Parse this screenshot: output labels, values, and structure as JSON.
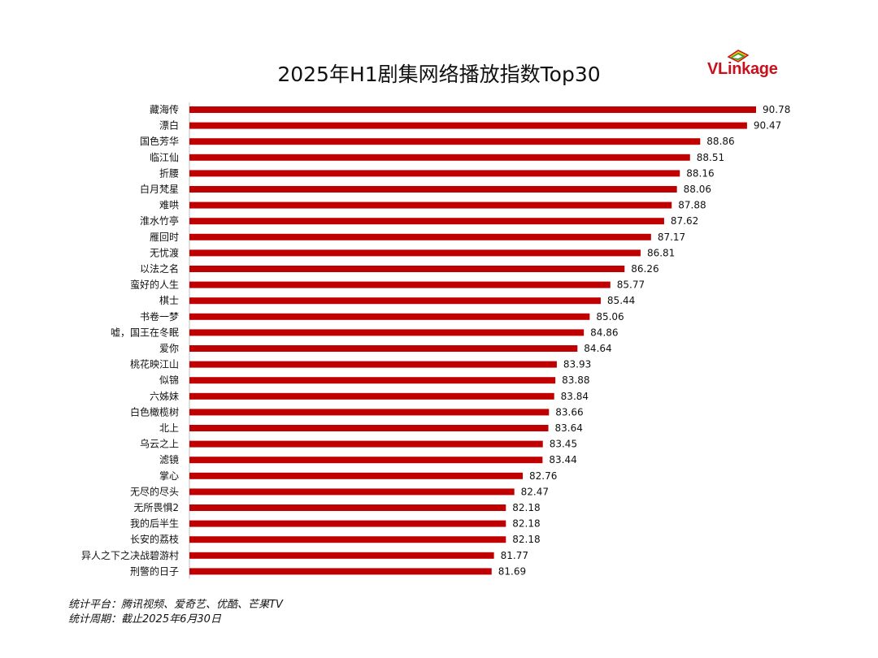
{
  "header": {
    "title": "2025年H1剧集网络播放指数Top30"
  },
  "logo": {
    "text_v": "VL",
    "text_rest": "inkage",
    "colors": [
      "#c8111d",
      "#f2c300",
      "#3a9d3a",
      "#ffffff"
    ]
  },
  "chart_data": {
    "type": "bar",
    "orientation": "horizontal",
    "title": "2025年H1剧集网络播放指数Top30",
    "bar_color": "#c00000",
    "categories": [
      "藏海传",
      "漂白",
      "国色芳华",
      "临江仙",
      "折腰",
      "白月梵星",
      "难哄",
      "淮水竹亭",
      "雁回时",
      "无忧渡",
      "以法之名",
      "蛮好的人生",
      "棋士",
      "书卷一梦",
      "嘘，国王在冬眠",
      "爱你",
      "桃花映江山",
      "似锦",
      "六姊妹",
      "白色橄榄树",
      "北上",
      "乌云之上",
      "滤镜",
      "掌心",
      "无尽的尽头",
      "无所畏惧2",
      "我的后半生",
      "长安的荔枝",
      "异人之下之决战碧游村",
      "刑警的日子"
    ],
    "values": [
      90.78,
      90.47,
      88.86,
      88.51,
      88.16,
      88.06,
      87.88,
      87.62,
      87.17,
      86.81,
      86.26,
      85.77,
      85.44,
      85.06,
      84.86,
      84.64,
      83.93,
      83.88,
      83.84,
      83.66,
      83.64,
      83.45,
      83.44,
      82.76,
      82.47,
      82.18,
      82.18,
      82.18,
      81.77,
      81.69
    ],
    "value_labels": [
      "90.78",
      "90.47",
      "88.86",
      "88.51",
      "88.16",
      "88.06",
      "87.88",
      "87.62",
      "87.17",
      "86.81",
      "86.26",
      "85.77",
      "85.44",
      "85.06",
      "84.86",
      "84.64",
      "83.93",
      "83.88",
      "83.84",
      "83.66",
      "83.64",
      "83.45",
      "83.44",
      "82.76",
      "82.47",
      "82.18",
      "82.18",
      "82.18",
      "81.77",
      "81.69"
    ],
    "xlim": [
      71.3,
      90.78
    ],
    "grid": false,
    "legend": "none"
  },
  "footer": {
    "line1": "统计平台：腾讯视频、爱奇艺、优酷、芒果TV",
    "line2": "统计周期：截止2025年6月30日"
  }
}
